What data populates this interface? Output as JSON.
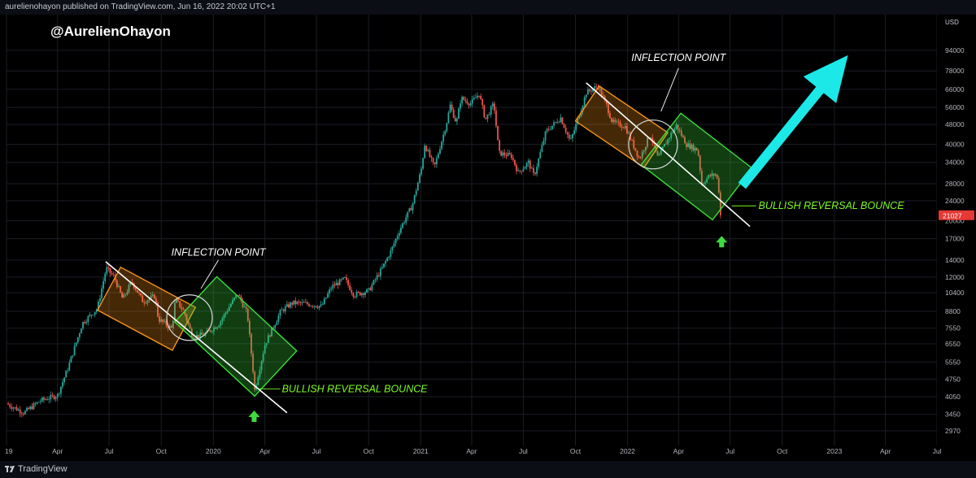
{
  "header": {
    "published_text": "aurelienohayon published on TradingView.com, Jun 16, 2022 20:02 UTC+1"
  },
  "footer": {
    "brand": "TradingView"
  },
  "chart_data": {
    "type": "candlestick",
    "title": "@AurelienOhayon",
    "y_unit": "USD",
    "y_scale": "log",
    "ylim": [
      2600,
      130000
    ],
    "y_ticks": [
      94000,
      78000,
      66000,
      56000,
      48000,
      40000,
      34000,
      28000,
      24000,
      20000,
      17000,
      14000,
      12000,
      10400,
      8800,
      7550,
      6550,
      5550,
      4750,
      4050,
      3450,
      2970
    ],
    "last_price": "21027",
    "x_ticks": [
      "19",
      "Apr",
      "Jul",
      "Oct",
      "2020",
      "Apr",
      "Jul",
      "Oct",
      "2021",
      "Apr",
      "Jul",
      "Oct",
      "2022",
      "Apr",
      "Jul",
      "Oct",
      "2023",
      "Apr",
      "Jul"
    ],
    "xlim": [
      "2019-01-01",
      "2023-07-01"
    ],
    "series": [
      {
        "price_path": [
          [
            "2019-01-01",
            3800
          ],
          [
            "2019-02-01",
            3500
          ],
          [
            "2019-03-01",
            3900
          ],
          [
            "2019-04-01",
            4100
          ],
          [
            "2019-04-20",
            5300
          ],
          [
            "2019-05-15",
            7900
          ],
          [
            "2019-06-10",
            9000
          ],
          [
            "2019-06-26",
            13000
          ],
          [
            "2019-07-10",
            12000
          ],
          [
            "2019-07-25",
            9800
          ],
          [
            "2019-08-10",
            11500
          ],
          [
            "2019-08-30",
            9600
          ],
          [
            "2019-09-20",
            10100
          ],
          [
            "2019-09-26",
            8200
          ],
          [
            "2019-10-20",
            7500
          ],
          [
            "2019-10-26",
            9800
          ],
          [
            "2019-11-10",
            8800
          ],
          [
            "2019-11-25",
            7000
          ],
          [
            "2019-12-15",
            7100
          ],
          [
            "2020-01-10",
            7800
          ],
          [
            "2020-02-01",
            9400
          ],
          [
            "2020-02-13",
            10300
          ],
          [
            "2020-03-01",
            8600
          ],
          [
            "2020-03-12",
            4900
          ],
          [
            "2020-03-13",
            4200
          ],
          [
            "2020-04-01",
            6500
          ],
          [
            "2020-04-29",
            8800
          ],
          [
            "2020-05-20",
            9500
          ],
          [
            "2020-06-15",
            9400
          ],
          [
            "2020-07-10",
            9200
          ],
          [
            "2020-07-28",
            11000
          ],
          [
            "2020-08-20",
            11800
          ],
          [
            "2020-09-05",
            10200
          ],
          [
            "2020-10-01",
            10600
          ],
          [
            "2020-10-25",
            13000
          ],
          [
            "2020-11-10",
            15300
          ],
          [
            "2020-11-25",
            18500
          ],
          [
            "2020-12-17",
            23000
          ],
          [
            "2021-01-02",
            32000
          ],
          [
            "2021-01-08",
            40000
          ],
          [
            "2021-01-25",
            32500
          ],
          [
            "2021-02-15",
            48000
          ],
          [
            "2021-02-22",
            57000
          ],
          [
            "2021-03-05",
            48500
          ],
          [
            "2021-03-13",
            61000
          ],
          [
            "2021-03-30",
            58000
          ],
          [
            "2021-04-14",
            63500
          ],
          [
            "2021-04-25",
            50000
          ],
          [
            "2021-05-10",
            58000
          ],
          [
            "2021-05-19",
            37000
          ],
          [
            "2021-06-10",
            36000
          ],
          [
            "2021-06-22",
            31000
          ],
          [
            "2021-07-10",
            34000
          ],
          [
            "2021-07-20",
            30000
          ],
          [
            "2021-08-10",
            45000
          ],
          [
            "2021-09-05",
            51000
          ],
          [
            "2021-09-22",
            41000
          ],
          [
            "2021-10-05",
            50000
          ],
          [
            "2021-10-20",
            64000
          ],
          [
            "2021-11-10",
            68000
          ],
          [
            "2021-11-25",
            57000
          ],
          [
            "2021-12-05",
            49000
          ],
          [
            "2021-12-28",
            47000
          ],
          [
            "2022-01-22",
            35000
          ],
          [
            "2022-02-10",
            44000
          ],
          [
            "2022-02-24",
            35000
          ],
          [
            "2022-03-05",
            39000
          ],
          [
            "2022-03-28",
            47500
          ],
          [
            "2022-04-15",
            40000
          ],
          [
            "2022-05-05",
            38000
          ],
          [
            "2022-05-12",
            28000
          ],
          [
            "2022-05-25",
            30000
          ],
          [
            "2022-06-05",
            30500
          ],
          [
            "2022-06-10",
            28500
          ],
          [
            "2022-06-13",
            22500
          ],
          [
            "2022-06-16",
            21027
          ]
        ]
      }
    ],
    "annotations": [
      {
        "text": "INFLECTION POINT",
        "color": "#ffffff",
        "at": [
          "2020-01-10",
          15000
        ]
      },
      {
        "text": "INFLECTION POINT",
        "color": "#ffffff",
        "at": [
          "2022-04-01",
          88000
        ]
      },
      {
        "text": "BULLISH REVERSAL BOUNCE",
        "color": "#7cfc1e",
        "at": [
          "2020-05-01",
          4350
        ]
      },
      {
        "text": "BULLISH REVERSAL BOUNCE",
        "color": "#7cfc1e",
        "at": [
          "2022-08-20",
          22900
        ]
      }
    ],
    "colors": {
      "up": "#26a69a",
      "down": "#ef5350",
      "falling_channel": "#f7931a",
      "bounce_channel": "#3ddc3d",
      "projection_arrow": "#1ce8e8",
      "last_price_badge": "#e53935",
      "grid": "#1b1e27"
    },
    "grid": true
  }
}
